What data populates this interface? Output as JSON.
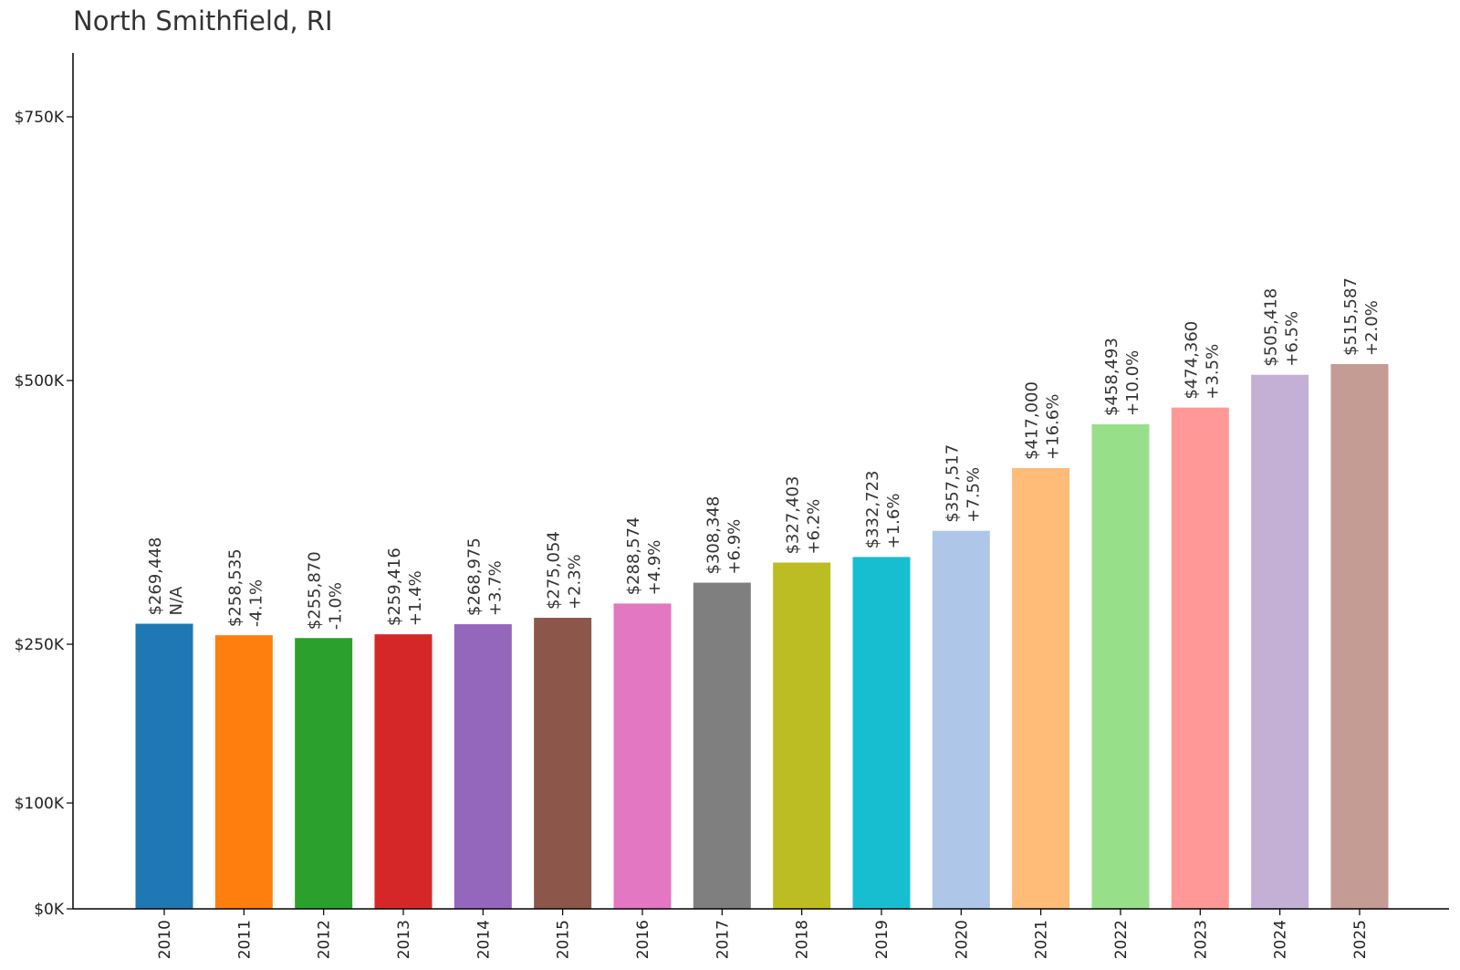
{
  "chart_data": {
    "type": "bar",
    "title": "North Smithfield, RI",
    "xlabel": "",
    "ylabel": "",
    "categories": [
      "2010",
      "2011",
      "2012",
      "2013",
      "2014",
      "2015",
      "2016",
      "2017",
      "2018",
      "2019",
      "2020",
      "2021",
      "2022",
      "2023",
      "2024",
      "2025"
    ],
    "values": [
      269448,
      258535,
      255870,
      259416,
      268975,
      275054,
      288574,
      308348,
      327403,
      332723,
      357517,
      417000,
      458493,
      474360,
      505418,
      515587
    ],
    "value_labels": [
      "$269,448",
      "$258,535",
      "$255,870",
      "$259,416",
      "$268,975",
      "$275,054",
      "$288,574",
      "$308,348",
      "$327,403",
      "$332,723",
      "$357,517",
      "$417,000",
      "$458,493",
      "$474,360",
      "$505,418",
      "$515,587"
    ],
    "change_labels": [
      "N/A",
      "-4.1%",
      "-1.0%",
      "+1.4%",
      "+3.7%",
      "+2.3%",
      "+4.9%",
      "+6.9%",
      "+6.2%",
      "+1.6%",
      "+7.5%",
      "+16.6%",
      "+10.0%",
      "+3.5%",
      "+6.5%",
      "+2.0%"
    ],
    "colors": [
      "#1f77b4",
      "#ff7f0e",
      "#2ca02c",
      "#d62728",
      "#9467bd",
      "#8c564b",
      "#e377c2",
      "#7f7f7f",
      "#bcbd22",
      "#17becf",
      "#aec7e8",
      "#ffbb78",
      "#98df8a",
      "#ff9896",
      "#c5b0d5",
      "#c49c94"
    ],
    "yticks": [
      0,
      100000,
      250000,
      500000,
      750000
    ],
    "ytick_labels": [
      "$0K",
      "$100K",
      "$250K",
      "$500K",
      "$750K"
    ],
    "ylim": [
      0,
      810000
    ],
    "grid": false,
    "legend": "none"
  }
}
